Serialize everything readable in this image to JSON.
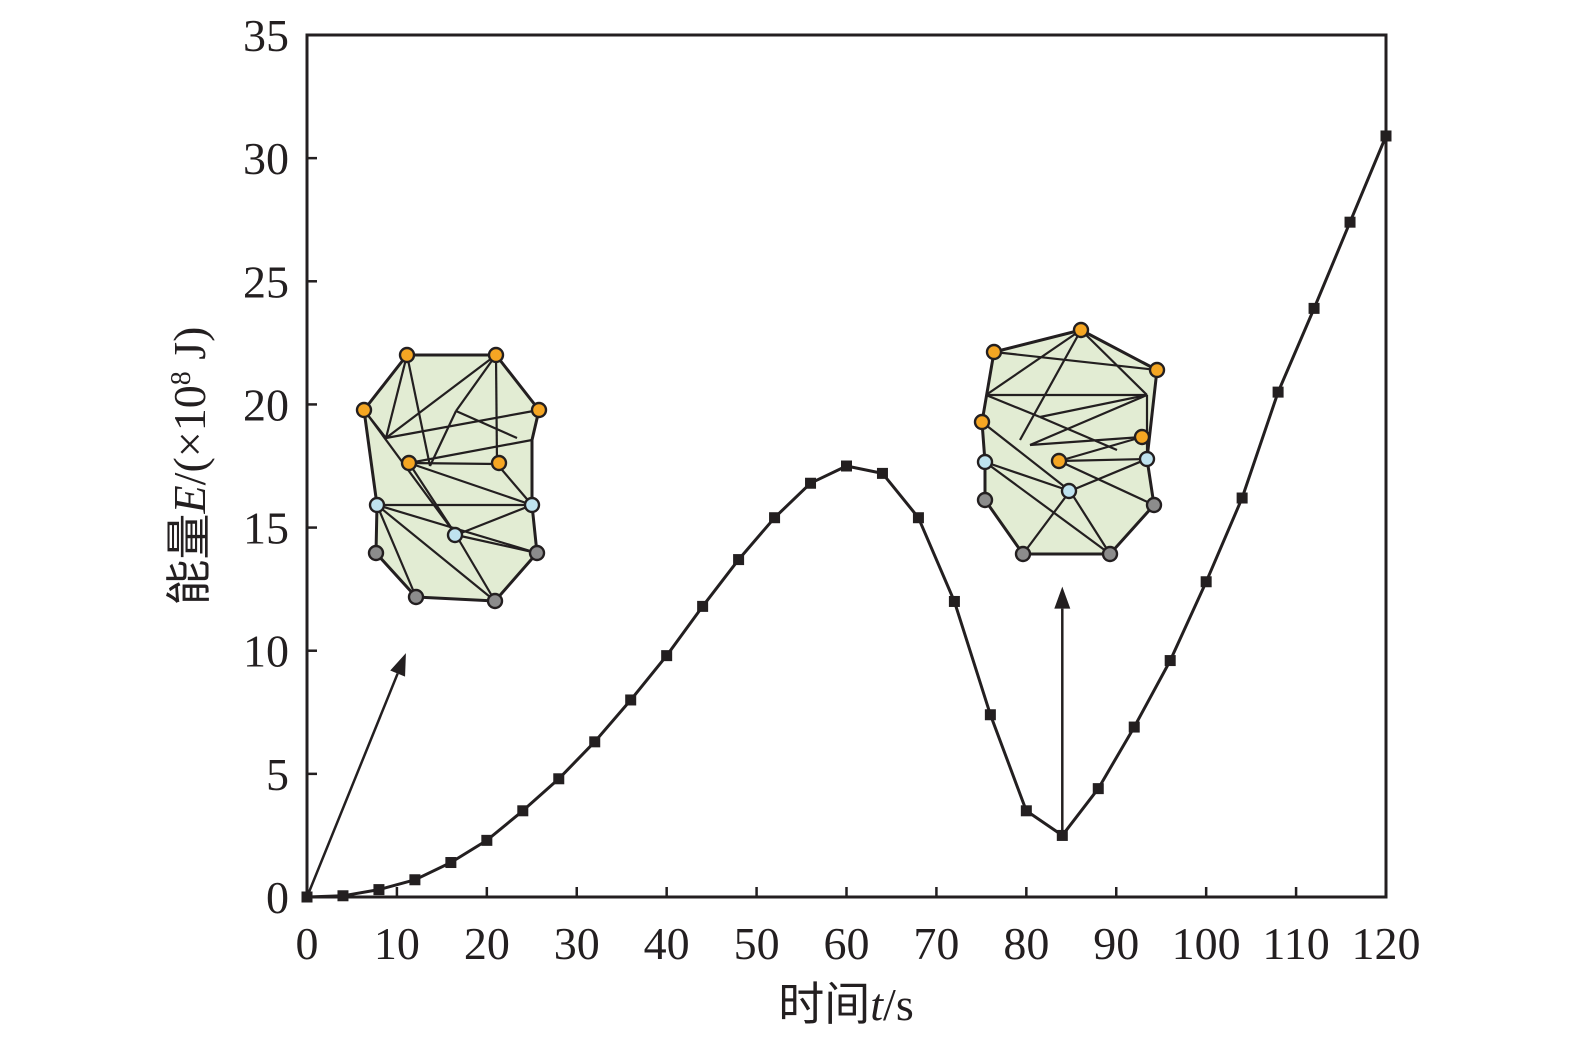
{
  "chart_data": {
    "type": "line",
    "xlabel": {
      "prefix": "时间",
      "var": "t",
      "suffix": "/s"
    },
    "ylabel": {
      "prefix": "能量",
      "var": "E",
      "suffix": "/(×10",
      "exp": "8",
      "unit": " J)"
    },
    "xlim": [
      0,
      120
    ],
    "ylim": [
      0,
      35
    ],
    "xticks": [
      "0",
      "10",
      "20",
      "30",
      "40",
      "50",
      "60",
      "70",
      "80",
      "90",
      "100",
      "110",
      "120"
    ],
    "yticks": [
      "0",
      "5",
      "10",
      "15",
      "20",
      "25",
      "30",
      "35"
    ],
    "grid": false,
    "series": [
      {
        "x": [
          0,
          4,
          8,
          12,
          16,
          20,
          24,
          28,
          32,
          36,
          40,
          44,
          48,
          52,
          56,
          60,
          64,
          68,
          72,
          76,
          80,
          84,
          88,
          92,
          96,
          100,
          104,
          108,
          112,
          116,
          120
        ],
        "values": [
          0,
          0.05,
          0.3,
          0.7,
          1.4,
          2.3,
          3.5,
          4.8,
          6.3,
          8.0,
          9.8,
          11.8,
          13.7,
          15.4,
          16.8,
          17.5,
          17.2,
          15.4,
          12.0,
          7.4,
          3.5,
          2.5,
          4.4,
          6.9,
          9.6,
          12.8,
          16.2,
          20.5,
          23.9,
          27.4,
          30.9
        ]
      }
    ],
    "annotations": [
      {
        "name": "inset-mesh-initial",
        "arrow_from": [
          0,
          0
        ],
        "arrow_to": [
          11,
          9.9
        ]
      },
      {
        "name": "inset-mesh-minimum",
        "arrow_from": [
          84,
          2.6
        ],
        "arrow_to": [
          84,
          12.6
        ]
      }
    ],
    "colors": {
      "line": "#231f20",
      "mesh_fill": "#e2ecd3",
      "node_orange": "#f5a623",
      "node_lightblue": "#bfe3ef",
      "node_gray": "#8c8c8c"
    }
  }
}
